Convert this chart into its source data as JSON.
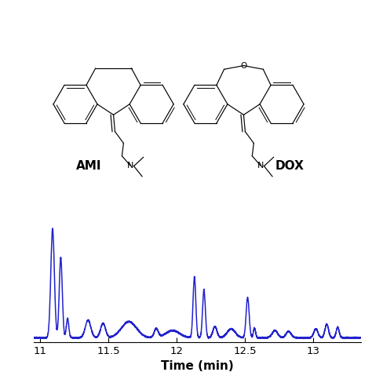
{
  "xlim": [
    10.95,
    13.35
  ],
  "ylim": [
    -0.02,
    1.0
  ],
  "xlabel": "Time (min)",
  "xlabel_fontsize": 11,
  "line_color": "#2222CC",
  "line_width": 1.1,
  "background_color": "#ffffff",
  "ami_label": "AMI",
  "dox_label": "DOX",
  "label_fontsize": 11,
  "tick_fontsize": 9.5,
  "xticks": [
    11.0,
    11.5,
    12.0,
    12.5,
    13.0
  ],
  "xtick_labels": [
    "11",
    "11.5",
    "12",
    "12.5",
    "13"
  ]
}
